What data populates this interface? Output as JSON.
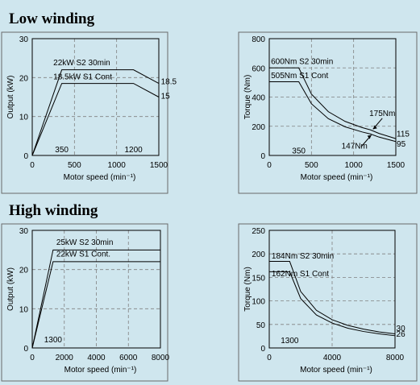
{
  "sections": {
    "low": "Low winding",
    "high": "High winding"
  },
  "chart_data": [
    {
      "type": "line",
      "id": "low-output",
      "xlabel": "Motor speed (min⁻¹)",
      "ylabel": "Output (kW)",
      "xlim": [
        0,
        1500
      ],
      "ylim": [
        0,
        30
      ],
      "xticks": [
        "0",
        "500",
        "1000",
        "1500"
      ],
      "yticks": [
        "0",
        "10",
        "20",
        "30"
      ],
      "grid": true,
      "series": [
        {
          "name": "22kW S2 30min",
          "x": [
            0,
            350,
            1200,
            1500
          ],
          "y": [
            0,
            22,
            22,
            18.5
          ]
        },
        {
          "name": "18.5kW S1 Cont",
          "x": [
            0,
            350,
            1200,
            1500
          ],
          "y": [
            0,
            18.5,
            18.5,
            15
          ]
        }
      ],
      "annotations": [
        "18.5",
        "15",
        "350",
        "1200"
      ]
    },
    {
      "type": "line",
      "id": "low-torque",
      "xlabel": "Motor speed (min⁻¹)",
      "ylabel": "Torque (Nm)",
      "xlim": [
        0,
        1500
      ],
      "ylim": [
        0,
        800
      ],
      "xticks": [
        "0",
        "500",
        "1000",
        "1500"
      ],
      "yticks": [
        "0",
        "200",
        "400",
        "600",
        "800"
      ],
      "grid": true,
      "series": [
        {
          "name": "600Nm S2 30min",
          "x": [
            0,
            350,
            500,
            700,
            900,
            1100,
            1200,
            1300,
            1500
          ],
          "y": [
            600,
            600,
            420,
            300,
            233,
            191,
            175,
            151,
            115
          ]
        },
        {
          "name": "505Nm S1 Cont",
          "x": [
            0,
            350,
            500,
            700,
            900,
            1100,
            1200,
            1300,
            1500
          ],
          "y": [
            505,
            505,
            354,
            252,
            196,
            161,
            147,
            126,
            95
          ]
        }
      ],
      "annotations": [
        "175Nm",
        "147Nm",
        "115",
        "95",
        "350"
      ]
    },
    {
      "type": "line",
      "id": "high-output",
      "xlabel": "Motor speed (min⁻¹)",
      "ylabel": "Output (kW)",
      "xlim": [
        0,
        8000
      ],
      "ylim": [
        0,
        30
      ],
      "xticks": [
        "0",
        "2000",
        "4000",
        "6000",
        "8000"
      ],
      "yticks": [
        "0",
        "10",
        "20",
        "30"
      ],
      "grid": true,
      "series": [
        {
          "name": "25kW S2 30min",
          "x": [
            0,
            1300,
            8000
          ],
          "y": [
            0,
            25,
            25
          ]
        },
        {
          "name": "22kW S1 Cont.",
          "x": [
            0,
            1300,
            8000
          ],
          "y": [
            0,
            22,
            22
          ]
        }
      ],
      "annotations": [
        "1300"
      ]
    },
    {
      "type": "line",
      "id": "high-torque",
      "xlabel": "Motor speed (min⁻¹)",
      "ylabel": "Torque (Nm)",
      "xlim": [
        0,
        8000
      ],
      "ylim": [
        0,
        250
      ],
      "xticks": [
        "0",
        "4000",
        "8000"
      ],
      "yticks": [
        "0",
        "50",
        "100",
        "150",
        "200",
        "250"
      ],
      "grid": true,
      "series": [
        {
          "name": "184Nm S2 30min",
          "x": [
            0,
            1300,
            2000,
            3000,
            4000,
            5000,
            6000,
            7000,
            8000
          ],
          "y": [
            184,
            184,
            120,
            80,
            60,
            48,
            40,
            34,
            30
          ]
        },
        {
          "name": "162Nm S1 Cont",
          "x": [
            0,
            1300,
            2000,
            3000,
            4000,
            5000,
            6000,
            7000,
            8000
          ],
          "y": [
            162,
            162,
            105,
            70,
            53,
            42,
            35,
            30,
            26
          ]
        }
      ],
      "annotations": [
        "30",
        "26",
        "1300"
      ]
    }
  ]
}
